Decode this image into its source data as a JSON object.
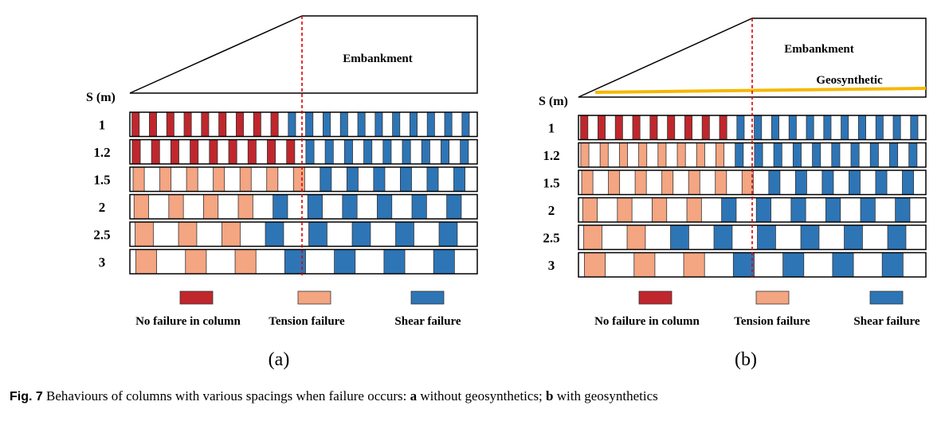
{
  "colors": {
    "no_failure": "#c0272d",
    "tension": "#f4a582",
    "shear": "#2e75b6",
    "geosynthetic": "#f5b800",
    "centerline": "#e00000"
  },
  "panels": [
    {
      "embankment_label": "Embankment",
      "geosynthetic_label": "",
      "spacing_axis_label": "S (m)",
      "panel_label": "(a)",
      "rows": [
        {
          "spacing": "1",
          "failure": [
            "no_failure",
            "no_failure",
            "no_failure",
            "no_failure",
            "no_failure",
            "no_failure",
            "no_failure",
            "no_failure",
            "no_failure",
            "shear",
            "shear",
            "shear",
            "shear",
            "shear",
            "shear",
            "shear",
            "shear",
            "shear",
            "shear",
            "shear"
          ]
        },
        {
          "spacing": "1.2",
          "failure": [
            "no_failure",
            "no_failure",
            "no_failure",
            "no_failure",
            "no_failure",
            "no_failure",
            "no_failure",
            "no_failure",
            "no_failure",
            "shear",
            "shear",
            "shear",
            "shear",
            "shear",
            "shear",
            "shear",
            "shear",
            "shear"
          ]
        },
        {
          "spacing": "1.5",
          "failure": [
            "tension",
            "tension",
            "tension",
            "tension",
            "tension",
            "tension",
            "tension",
            "shear",
            "shear",
            "shear",
            "shear",
            "shear",
            "shear"
          ]
        },
        {
          "spacing": "2",
          "failure": [
            "tension",
            "tension",
            "tension",
            "tension",
            "shear",
            "shear",
            "shear",
            "shear",
            "shear",
            "shear"
          ]
        },
        {
          "spacing": "2.5",
          "failure": [
            "tension",
            "tension",
            "tension",
            "shear",
            "shear",
            "shear",
            "shear",
            "shear"
          ]
        },
        {
          "spacing": "3",
          "failure": [
            "tension",
            "tension",
            "tension",
            "shear",
            "shear",
            "shear",
            "shear"
          ]
        }
      ]
    },
    {
      "embankment_label": "Embankment",
      "geosynthetic_label": "Geosynthetic",
      "spacing_axis_label": "S (m)",
      "panel_label": "(b)",
      "rows": [
        {
          "spacing": "1",
          "failure": [
            "no_failure",
            "no_failure",
            "no_failure",
            "no_failure",
            "no_failure",
            "no_failure",
            "no_failure",
            "no_failure",
            "no_failure",
            "shear",
            "shear",
            "shear",
            "shear",
            "shear",
            "shear",
            "shear",
            "shear",
            "shear",
            "shear",
            "shear"
          ]
        },
        {
          "spacing": "1.2",
          "failure": [
            "tension",
            "tension",
            "tension",
            "tension",
            "tension",
            "tension",
            "tension",
            "tension",
            "shear",
            "shear",
            "shear",
            "shear",
            "shear",
            "shear",
            "shear",
            "shear",
            "shear",
            "shear"
          ]
        },
        {
          "spacing": "1.5",
          "failure": [
            "tension",
            "tension",
            "tension",
            "tension",
            "tension",
            "tension",
            "tension",
            "shear",
            "shear",
            "shear",
            "shear",
            "shear",
            "shear"
          ]
        },
        {
          "spacing": "2",
          "failure": [
            "tension",
            "tension",
            "tension",
            "tension",
            "shear",
            "shear",
            "shear",
            "shear",
            "shear",
            "shear"
          ]
        },
        {
          "spacing": "2.5",
          "failure": [
            "tension",
            "tension",
            "shear",
            "shear",
            "shear",
            "shear",
            "shear",
            "shear"
          ]
        },
        {
          "spacing": "3",
          "failure": [
            "tension",
            "tension",
            "tension",
            "shear",
            "shear",
            "shear",
            "shear"
          ]
        }
      ]
    }
  ],
  "legend": {
    "no_failure": "No failure in column",
    "tension": "Tension failure",
    "shear": "Shear failure"
  },
  "caption": {
    "label": "Fig. 7",
    "text_1": " Behaviours of columns with various spacings when failure occurs: ",
    "a": "a",
    "text_2": " without geosynthetics; ",
    "b": "b",
    "text_3": " with geosynthetics"
  }
}
